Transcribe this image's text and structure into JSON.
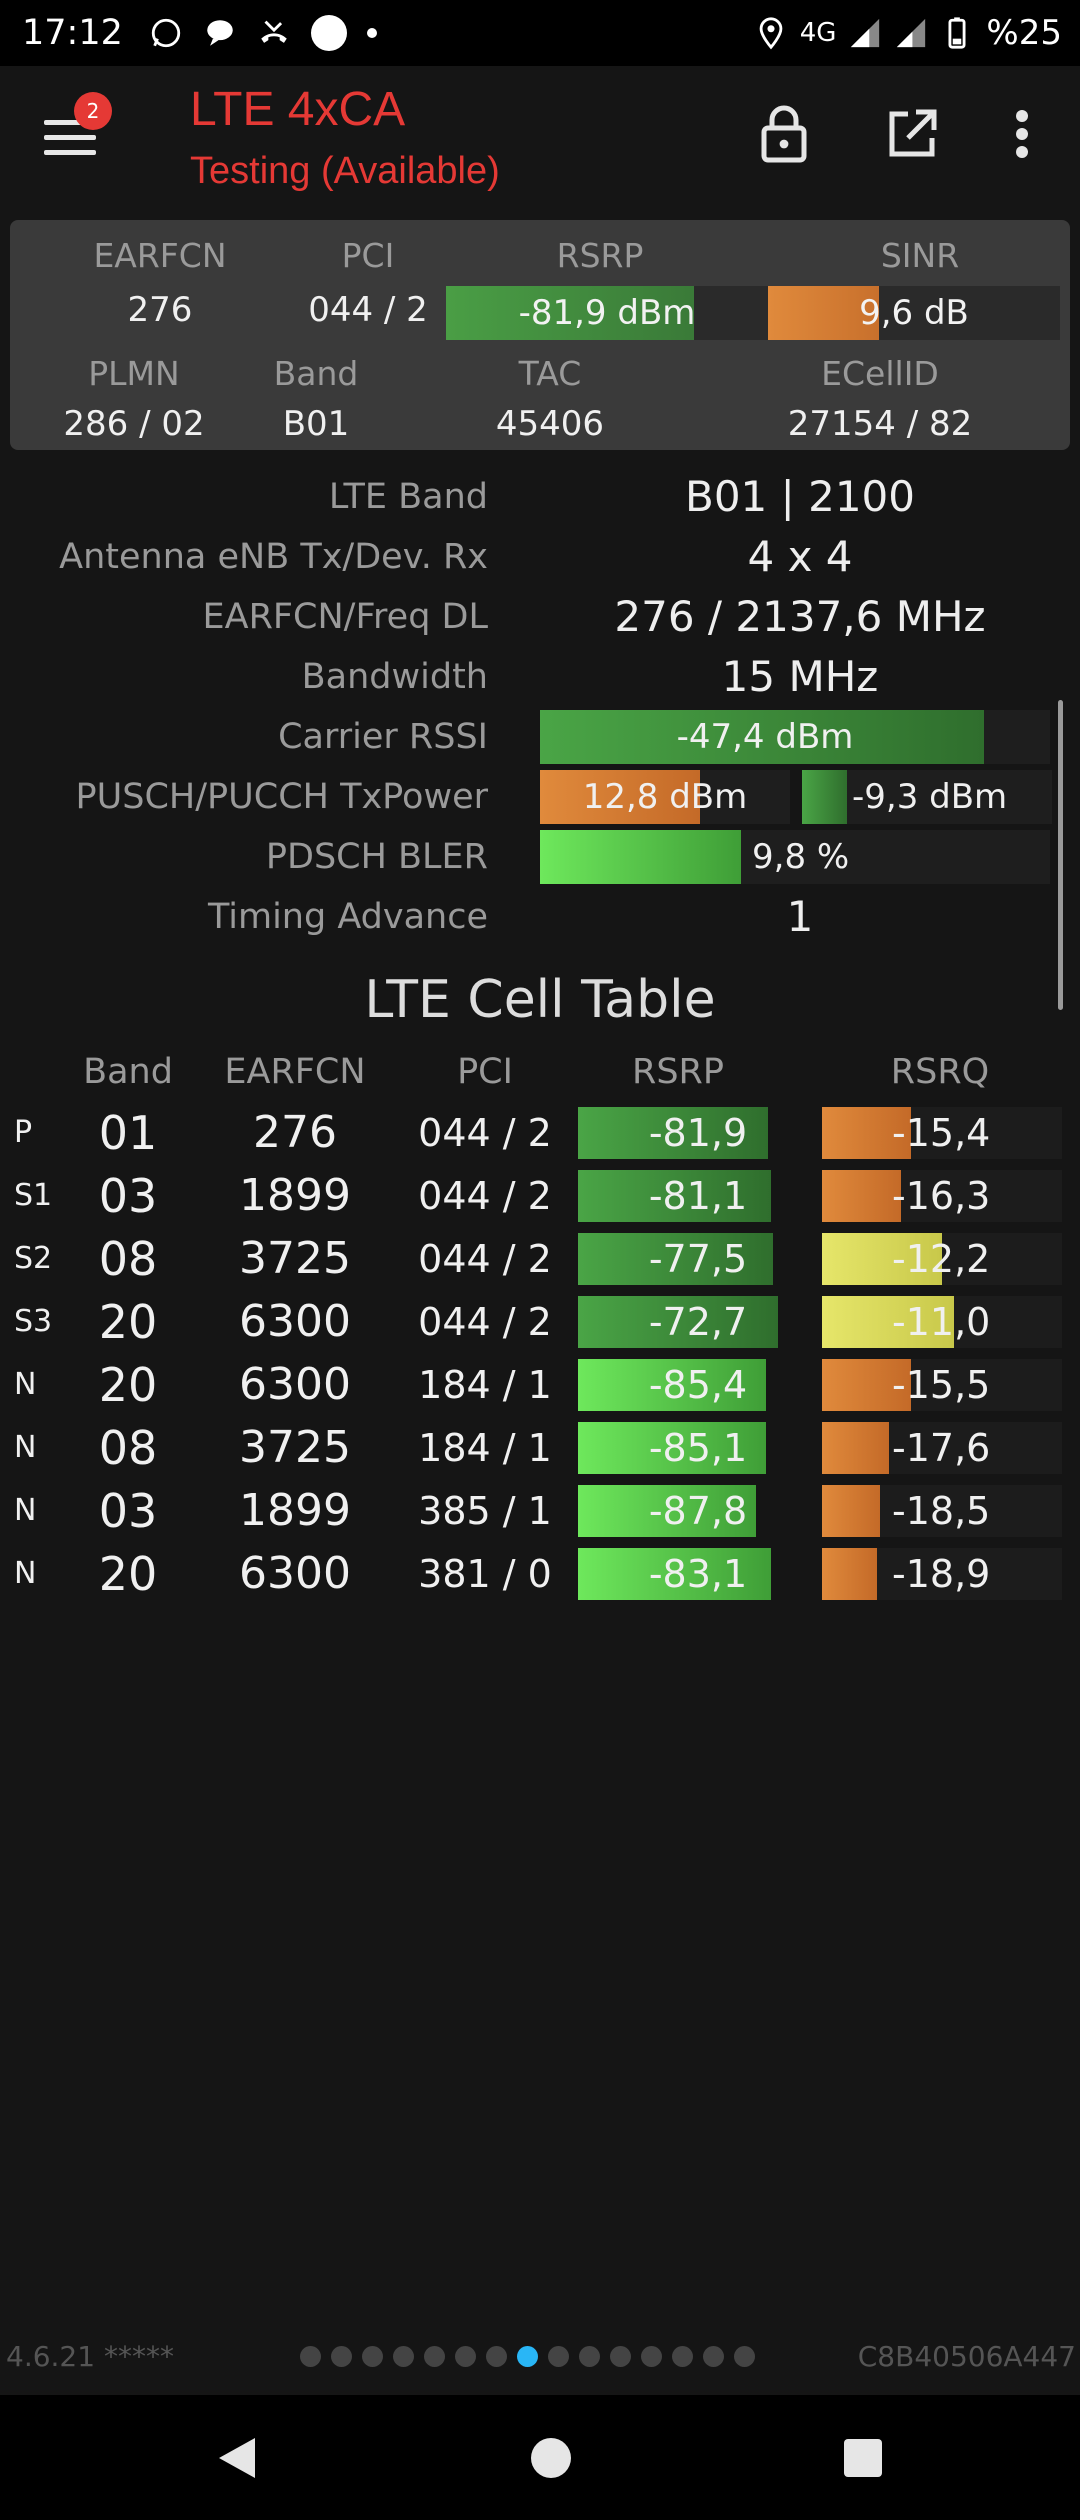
{
  "status_bar": {
    "time": "17:12",
    "network": "4G",
    "battery": "%25"
  },
  "app": {
    "title": "LTE 4xCA",
    "subtitle": "Testing (Available)",
    "notification_count": "2",
    "accent_color": "#e53935"
  },
  "summary": {
    "earfcn_label": "EARFCN",
    "earfcn": "276",
    "pci_label": "PCI",
    "pci": "044 / 2",
    "rsrp_label": "RSRP",
    "rsrp": "-81,9 dBm",
    "rsrp_level": 0.77,
    "sinr_label": "SINR",
    "sinr": "9,6 dB",
    "sinr_level": 0.38,
    "plmn_label": "PLMN",
    "plmn": "286 / 02",
    "band_label": "Band",
    "band": "B01",
    "tac_label": "TAC",
    "tac": "45406",
    "ecellid_label": "ECellID",
    "ecellid": "27154 / 82"
  },
  "details": [
    {
      "label": "LTE Band",
      "value": "B01 | 2100"
    },
    {
      "label": "Antenna eNB Tx/Dev. Rx",
      "value": "4 x 4"
    },
    {
      "label": "EARFCN/Freq DL",
      "value": "276 / 2137,6 MHz"
    },
    {
      "label": "Bandwidth",
      "value": "15 MHz"
    },
    {
      "label": "Carrier RSSI",
      "value": "-47,4 dBm",
      "level": 0.87
    },
    {
      "label": "PUSCH/PUCCH TxPower",
      "value": "12,8 dBm",
      "value2": "-9,3 dBm",
      "level": 0.64,
      "level2": 0.28
    },
    {
      "label": "PDSCH BLER",
      "value": "9,8 %",
      "level": 0.41
    },
    {
      "label": "Timing Advance",
      "value": "1"
    }
  ],
  "cell_table": {
    "title": "LTE Cell Table",
    "headers": [
      "Band",
      "EARFCN",
      "PCI",
      "RSRP",
      "RSRQ"
    ],
    "rows": [
      {
        "type": "P",
        "band": "01",
        "earfcn": "276",
        "pci": "044 / 2",
        "rsrp": "-81,9",
        "rsrp_level": 0.76,
        "rsrq": "-15,4",
        "rsrq_level": 0.37
      },
      {
        "type": "S1",
        "band": "03",
        "earfcn": "1899",
        "pci": "044 / 2",
        "rsrp": "-81,1",
        "rsrp_level": 0.77,
        "rsrq": "-16,3",
        "rsrq_level": 0.33
      },
      {
        "type": "S2",
        "band": "08",
        "earfcn": "3725",
        "pci": "044 / 2",
        "rsrp": "-77,5",
        "rsrp_level": 0.78,
        "rsrq": "-12,2",
        "rsrq_level": 0.5
      },
      {
        "type": "S3",
        "band": "20",
        "earfcn": "6300",
        "pci": "044 / 2",
        "rsrp": "-72,7",
        "rsrp_level": 0.8,
        "rsrq": "-11,0",
        "rsrq_level": 0.55
      },
      {
        "type": "N",
        "band": "20",
        "earfcn": "6300",
        "pci": "184 / 1",
        "rsrp": "-85,4",
        "rsrp_level": 0.75,
        "rsrq": "-15,5",
        "rsrq_level": 0.37
      },
      {
        "type": "N",
        "band": "08",
        "earfcn": "3725",
        "pci": "184 / 1",
        "rsrp": "-85,1",
        "rsrp_level": 0.75,
        "rsrq": "-17,6",
        "rsrq_level": 0.28
      },
      {
        "type": "N",
        "band": "03",
        "earfcn": "1899",
        "pci": "385 / 1",
        "rsrp": "-87,8",
        "rsrp_level": 0.71,
        "rsrq": "-18,5",
        "rsrq_level": 0.24
      },
      {
        "type": "N",
        "band": "20",
        "earfcn": "6300",
        "pci": "381 / 0",
        "rsrp": "-83,1",
        "rsrp_level": 0.77,
        "rsrq": "-18,9",
        "rsrq_level": 0.23
      }
    ]
  },
  "footer": {
    "version": "4.6.21 *****",
    "device_id": "C8B40506A447",
    "page_count": 15,
    "active_page": 8
  }
}
